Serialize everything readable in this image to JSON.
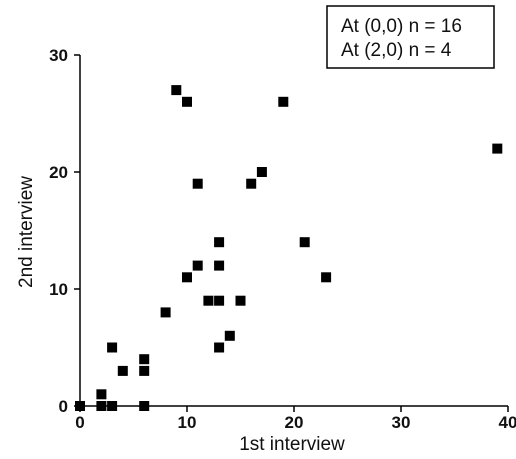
{
  "chart_data": {
    "type": "scatter",
    "xlabel": "1st interview",
    "ylabel": "2nd interview",
    "xlim": [
      0,
      40
    ],
    "ylim": [
      0,
      30
    ],
    "xticks": [
      0,
      10,
      20,
      30,
      40
    ],
    "yticks": [
      0,
      10,
      20,
      30
    ],
    "grid": false,
    "marker_color": "#000000",
    "legend_position": "top-right",
    "annotations": [
      "At (0,0) n = 16",
      "At (2,0) n = 4"
    ],
    "points": [
      {
        "x": 0,
        "y": 0
      },
      {
        "x": 2,
        "y": 0
      },
      {
        "x": 2,
        "y": 1
      },
      {
        "x": 3,
        "y": 0
      },
      {
        "x": 3,
        "y": 5
      },
      {
        "x": 4,
        "y": 3
      },
      {
        "x": 6,
        "y": 0
      },
      {
        "x": 6,
        "y": 3
      },
      {
        "x": 6,
        "y": 4
      },
      {
        "x": 8,
        "y": 8
      },
      {
        "x": 9,
        "y": 27
      },
      {
        "x": 10,
        "y": 26
      },
      {
        "x": 10,
        "y": 11
      },
      {
        "x": 11,
        "y": 19
      },
      {
        "x": 11,
        "y": 12
      },
      {
        "x": 12,
        "y": 9
      },
      {
        "x": 13,
        "y": 14
      },
      {
        "x": 13,
        "y": 12
      },
      {
        "x": 13,
        "y": 9
      },
      {
        "x": 13,
        "y": 5
      },
      {
        "x": 14,
        "y": 6
      },
      {
        "x": 15,
        "y": 9
      },
      {
        "x": 16,
        "y": 19
      },
      {
        "x": 17,
        "y": 20
      },
      {
        "x": 19,
        "y": 26
      },
      {
        "x": 21,
        "y": 14
      },
      {
        "x": 23,
        "y": 11
      },
      {
        "x": 39,
        "y": 22
      }
    ]
  }
}
